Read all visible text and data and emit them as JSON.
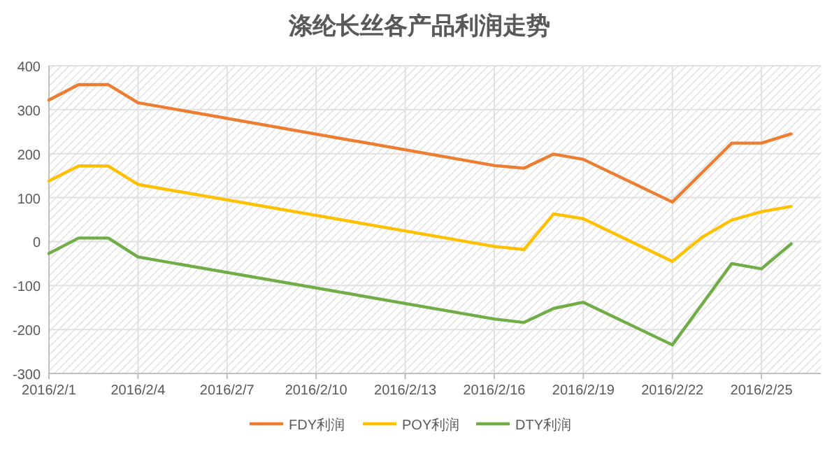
{
  "chart_data": {
    "type": "line",
    "title": "涤纶长丝各产品利润走势",
    "xlim": [
      "2016-02-01",
      "2016-02-27"
    ],
    "xticks": [
      {
        "value": "2016-02-01",
        "label": "2016/2/1"
      },
      {
        "value": "2016-02-04",
        "label": "2016/2/4"
      },
      {
        "value": "2016-02-07",
        "label": "2016/2/7"
      },
      {
        "value": "2016-02-10",
        "label": "2016/2/10"
      },
      {
        "value": "2016-02-13",
        "label": "2016/2/13"
      },
      {
        "value": "2016-02-16",
        "label": "2016/2/16"
      },
      {
        "value": "2016-02-19",
        "label": "2016/2/19"
      },
      {
        "value": "2016-02-22",
        "label": "2016/2/22"
      },
      {
        "value": "2016-02-25",
        "label": "2016/2/25"
      }
    ],
    "ylim": [
      -300,
      400
    ],
    "yticks": [
      -300,
      -200,
      -100,
      0,
      100,
      200,
      300,
      400
    ],
    "grid": true,
    "legend": "bottom",
    "marker": "none",
    "line_style": "solid",
    "series": [
      {
        "name": "FDY利润",
        "color": "#ed7d31",
        "x": [
          "2016-02-01",
          "2016-02-02",
          "2016-02-03",
          "2016-02-04",
          "2016-02-16",
          "2016-02-17",
          "2016-02-18",
          "2016-02-19",
          "2016-02-22",
          "2016-02-24",
          "2016-02-25",
          "2016-02-26"
        ],
        "values": [
          322,
          357,
          357,
          316,
          173,
          167,
          199,
          187,
          90,
          224,
          224,
          245
        ]
      },
      {
        "name": "POY利润",
        "color": "#ffc000",
        "x": [
          "2016-02-01",
          "2016-02-02",
          "2016-02-03",
          "2016-02-04",
          "2016-02-16",
          "2016-02-17",
          "2016-02-18",
          "2016-02-19",
          "2016-02-22",
          "2016-02-23",
          "2016-02-24",
          "2016-02-25",
          "2016-02-26"
        ],
        "values": [
          138,
          172,
          172,
          130,
          -11,
          -18,
          63,
          52,
          -45,
          10,
          49,
          68,
          80
        ]
      },
      {
        "name": "DTY利润",
        "color": "#70ad47",
        "x": [
          "2016-02-01",
          "2016-02-02",
          "2016-02-03",
          "2016-02-04",
          "2016-02-16",
          "2016-02-17",
          "2016-02-18",
          "2016-02-19",
          "2016-02-22",
          "2016-02-24",
          "2016-02-25",
          "2016-02-26"
        ],
        "values": [
          -27,
          8,
          8,
          -35,
          -176,
          -184,
          -152,
          -138,
          -235,
          -50,
          -62,
          -5
        ]
      }
    ]
  }
}
